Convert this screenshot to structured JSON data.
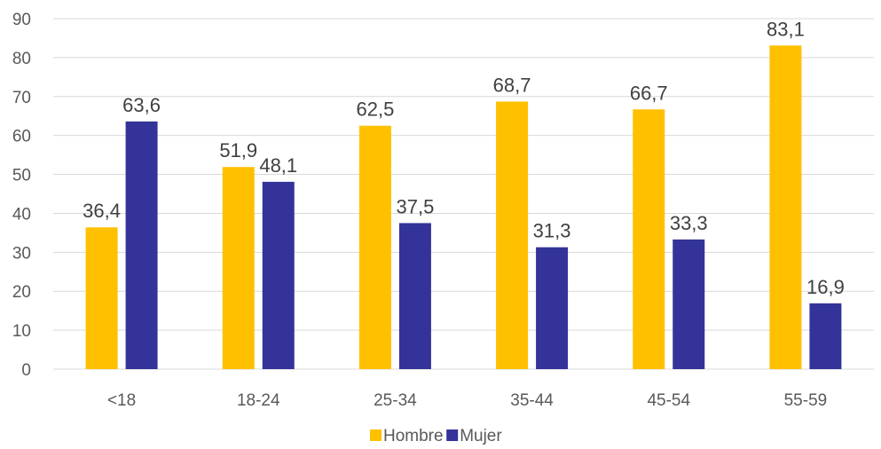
{
  "chart_data": {
    "type": "bar",
    "categories": [
      "<18",
      "18-24",
      "25-34",
      "35-44",
      "45-54",
      "55-59"
    ],
    "series": [
      {
        "name": "Hombre",
        "color": "#FFC000",
        "values": [
          36.4,
          51.9,
          62.5,
          68.7,
          66.7,
          83.1
        ],
        "labels": [
          "36,4",
          "51,9",
          "62,5",
          "68,7",
          "66,7",
          "83,1"
        ]
      },
      {
        "name": "Mujer",
        "color": "#333399",
        "values": [
          63.6,
          48.1,
          37.5,
          31.3,
          33.3,
          16.9
        ],
        "labels": [
          "63,6",
          "48,1",
          "37,5",
          "31,3",
          "33,3",
          "16,9"
        ]
      }
    ],
    "yticks": [
      "0",
      "10",
      "20",
      "30",
      "40",
      "50",
      "60",
      "70",
      "80",
      "90"
    ],
    "ylim": [
      0,
      90
    ],
    "grid": true,
    "legend": "bottom-center",
    "title": "",
    "xlabel": "",
    "ylabel": ""
  }
}
